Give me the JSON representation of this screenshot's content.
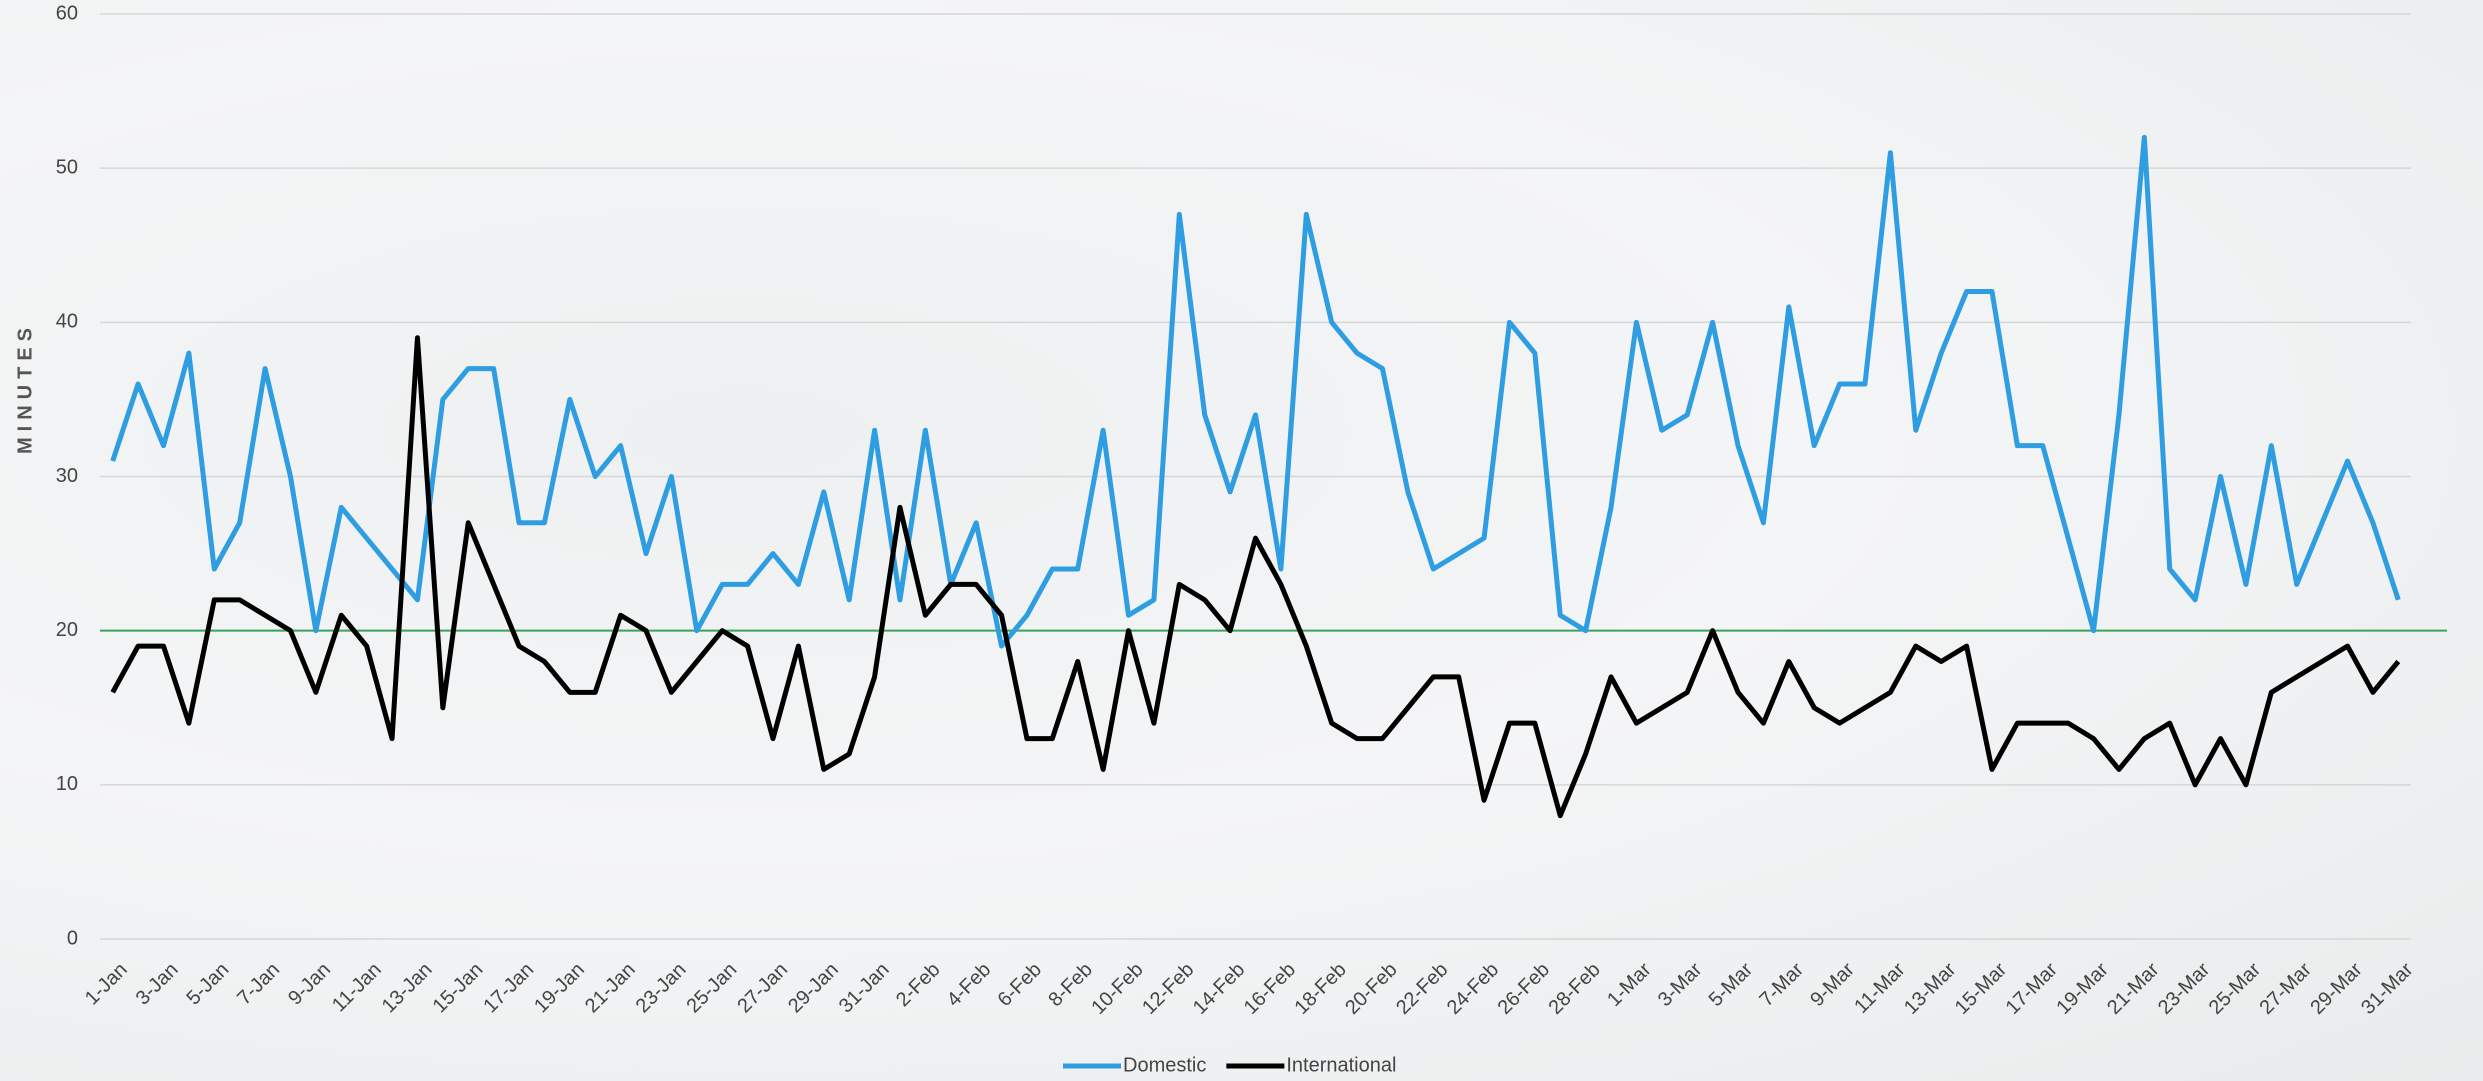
{
  "chart_data": {
    "type": "line",
    "y_label": "MINUTES",
    "categories": [
      "1-Jan",
      null,
      "3-Jan",
      null,
      "5-Jan",
      null,
      "7-Jan",
      null,
      "9-Jan",
      null,
      "11-Jan",
      null,
      "13-Jan",
      null,
      "15-Jan",
      null,
      "17-Jan",
      null,
      "19-Jan",
      null,
      "21-Jan",
      null,
      "23-Jan",
      null,
      "25-Jan",
      null,
      "27-Jan",
      null,
      "29-Jan",
      null,
      "31-Jan",
      null,
      "2-Feb",
      null,
      "4-Feb",
      null,
      "6-Feb",
      null,
      "8-Feb",
      null,
      "10-Feb",
      null,
      "12-Feb",
      null,
      "14-Feb",
      null,
      "16-Feb",
      null,
      "18-Feb",
      null,
      "20-Feb",
      null,
      "22-Feb",
      null,
      "24-Feb",
      null,
      "26-Feb",
      null,
      "28-Feb",
      null,
      "1-Mar",
      null,
      "3-Mar",
      null,
      "5-Mar",
      null,
      "7-Mar",
      null,
      "9-Mar",
      null,
      "11-Mar",
      null,
      "13-Mar",
      null,
      "15-Mar",
      null,
      "17-Mar",
      null,
      "19-Mar",
      null,
      "21-Mar",
      null,
      "23-Mar",
      null,
      "25-Mar",
      null,
      "27-Mar",
      null,
      "29-Mar",
      null,
      "31-Mar"
    ],
    "series": [
      {
        "name": "Domestic",
        "color": "#2f9de2",
        "values": [
          31,
          36,
          32,
          38,
          24,
          27,
          37,
          30,
          20,
          28,
          26,
          24,
          22,
          35,
          37,
          37,
          27,
          27,
          35,
          30,
          32,
          25,
          30,
          20,
          23,
          23,
          25,
          23,
          29,
          22,
          33,
          22,
          33,
          23,
          27,
          19,
          21,
          24,
          24,
          33,
          21,
          22,
          47,
          34,
          29,
          34,
          24,
          47,
          40,
          38,
          37,
          29,
          24,
          25,
          26,
          40,
          38,
          21,
          20,
          28,
          40,
          33,
          34,
          40,
          32,
          27,
          41,
          32,
          36,
          36,
          51,
          33,
          38,
          42,
          42,
          32,
          32,
          26,
          20,
          34,
          52,
          24,
          22,
          30,
          23,
          32,
          23,
          27,
          31,
          27,
          22
        ]
      },
      {
        "name": "International",
        "color": "#000000",
        "values": [
          16,
          19,
          19,
          14,
          22,
          22,
          21,
          20,
          16,
          21,
          19,
          13,
          39,
          15,
          27,
          23,
          19,
          18,
          16,
          16,
          21,
          20,
          16,
          18,
          20,
          19,
          13,
          19,
          11,
          12,
          17,
          28,
          21,
          23,
          23,
          21,
          13,
          13,
          18,
          11,
          20,
          14,
          23,
          22,
          20,
          26,
          23,
          19,
          14,
          13,
          13,
          15,
          17,
          17,
          9,
          14,
          14,
          8,
          12,
          17,
          14,
          15,
          16,
          20,
          16,
          14,
          18,
          15,
          14,
          15,
          16,
          19,
          18,
          19,
          11,
          14,
          14,
          14,
          13,
          11,
          13,
          14,
          10,
          13,
          10,
          16,
          17,
          18,
          19,
          16,
          18
        ]
      }
    ],
    "reference_line": {
      "value": 20,
      "color": "#3aa35a"
    },
    "ylim": [
      0,
      60
    ],
    "yticks": [
      0,
      10,
      20,
      30,
      40,
      50,
      60
    ],
    "grid": true,
    "legend": "bottom"
  }
}
